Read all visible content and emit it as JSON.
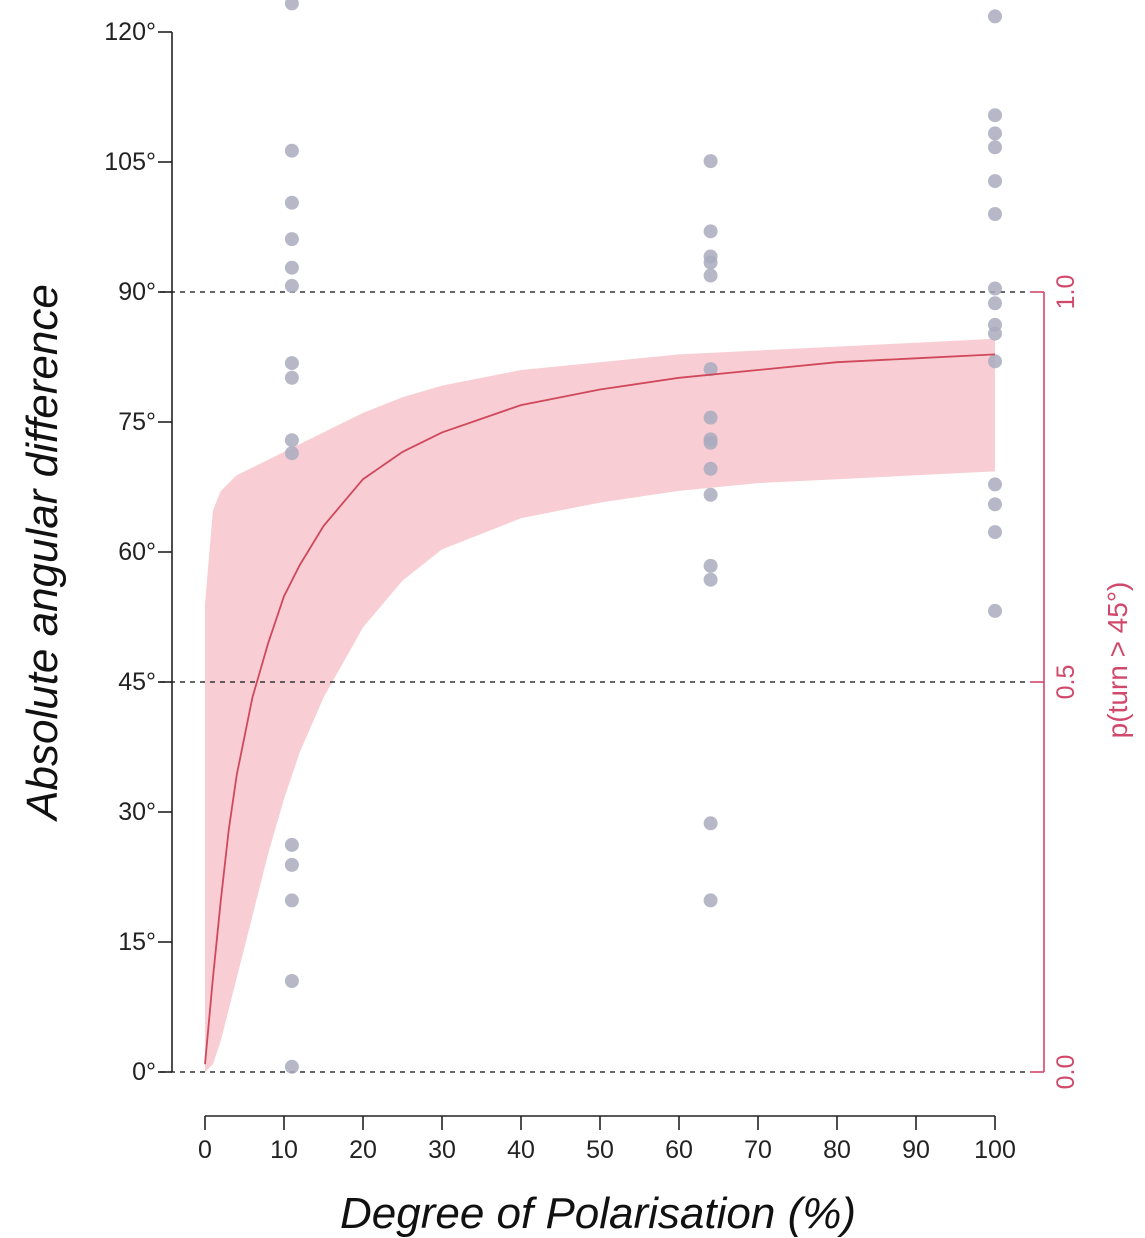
{
  "chart_data": {
    "type": "scatter",
    "title": "",
    "xlabel": "Degree of Polarisation (%)",
    "ylabel": "Absolute angular difference",
    "y2label": "p(turn > 45°)",
    "xlim": [
      0,
      100
    ],
    "ylim": [
      0,
      120
    ],
    "y2lim": [
      0.0,
      1.0
    ],
    "x_ticks": [
      "0",
      "10",
      "20",
      "30",
      "40",
      "50",
      "60",
      "70",
      "80",
      "90",
      "100"
    ],
    "y_ticks": [
      "0°",
      "15°",
      "30°",
      "45°",
      "60°",
      "75°",
      "90°",
      "105°",
      "120°"
    ],
    "y2_ticks": [
      "0.0",
      "0.5",
      "1.0"
    ],
    "reference_lines_y": [
      0,
      45,
      90
    ],
    "colors": {
      "points": "#a9abbe",
      "curve": "#d0485c",
      "band": "#f4b4bd",
      "right_axis": "#d0486a"
    },
    "series": [
      {
        "type": "scatter",
        "points": [
          {
            "x": 11,
            "y": 123.3
          },
          {
            "x": 11,
            "y": 106.3
          },
          {
            "x": 11,
            "y": 100.3
          },
          {
            "x": 11,
            "y": 96.1
          },
          {
            "x": 11,
            "y": 92.8
          },
          {
            "x": 11,
            "y": 90.7
          },
          {
            "x": 11,
            "y": 81.8
          },
          {
            "x": 11,
            "y": 80.1
          },
          {
            "x": 11,
            "y": 72.9
          },
          {
            "x": 11,
            "y": 71.4
          },
          {
            "x": 11,
            "y": 26.2
          },
          {
            "x": 11,
            "y": 23.9
          },
          {
            "x": 11,
            "y": 19.8
          },
          {
            "x": 11,
            "y": 10.5
          },
          {
            "x": 11,
            "y": 0.6
          },
          {
            "x": 64,
            "y": 105.1
          },
          {
            "x": 64,
            "y": 97.0
          },
          {
            "x": 64,
            "y": 94.1
          },
          {
            "x": 64,
            "y": 93.4
          },
          {
            "x": 64,
            "y": 91.9
          },
          {
            "x": 64,
            "y": 81.1
          },
          {
            "x": 64,
            "y": 75.5
          },
          {
            "x": 64,
            "y": 73.0
          },
          {
            "x": 64,
            "y": 72.6
          },
          {
            "x": 64,
            "y": 69.6
          },
          {
            "x": 64,
            "y": 66.6
          },
          {
            "x": 64,
            "y": 58.4
          },
          {
            "x": 64,
            "y": 56.8
          },
          {
            "x": 64,
            "y": 28.7
          },
          {
            "x": 64,
            "y": 19.8
          },
          {
            "x": 100,
            "y": 121.8
          },
          {
            "x": 100,
            "y": 110.4
          },
          {
            "x": 100,
            "y": 108.3
          },
          {
            "x": 100,
            "y": 106.7
          },
          {
            "x": 100,
            "y": 102.8
          },
          {
            "x": 100,
            "y": 99.0
          },
          {
            "x": 100,
            "y": 90.4
          },
          {
            "x": 100,
            "y": 88.7
          },
          {
            "x": 100,
            "y": 86.2
          },
          {
            "x": 100,
            "y": 85.2
          },
          {
            "x": 100,
            "y": 82.0
          },
          {
            "x": 100,
            "y": 67.8
          },
          {
            "x": 100,
            "y": 65.5
          },
          {
            "x": 100,
            "y": 62.3
          },
          {
            "x": 100,
            "y": 53.2
          }
        ]
      },
      {
        "type": "line",
        "axis": "y2",
        "x": [
          0,
          1,
          2,
          3,
          4,
          6,
          8,
          10,
          12,
          15,
          20,
          25,
          30,
          40,
          50,
          60,
          70,
          80,
          90,
          100
        ],
        "y": [
          0.01,
          0.12,
          0.22,
          0.31,
          0.38,
          0.48,
          0.55,
          0.61,
          0.65,
          0.7,
          0.76,
          0.795,
          0.82,
          0.855,
          0.875,
          0.89,
          0.9,
          0.91,
          0.915,
          0.92
        ]
      },
      {
        "type": "area",
        "axis": "y2",
        "x": [
          0,
          1,
          2,
          3,
          4,
          6,
          8,
          10,
          12,
          15,
          20,
          25,
          30,
          40,
          50,
          60,
          70,
          80,
          90,
          100
        ],
        "y_upper": [
          0.6,
          0.72,
          0.745,
          0.755,
          0.765,
          0.775,
          0.785,
          0.795,
          0.805,
          0.82,
          0.845,
          0.865,
          0.88,
          0.9,
          0.91,
          0.92,
          0.925,
          0.93,
          0.935,
          0.94
        ],
        "y_lower": [
          0.0,
          0.01,
          0.04,
          0.08,
          0.12,
          0.2,
          0.28,
          0.35,
          0.41,
          0.48,
          0.57,
          0.63,
          0.67,
          0.71,
          0.73,
          0.745,
          0.755,
          0.76,
          0.765,
          0.77
        ]
      }
    ]
  }
}
